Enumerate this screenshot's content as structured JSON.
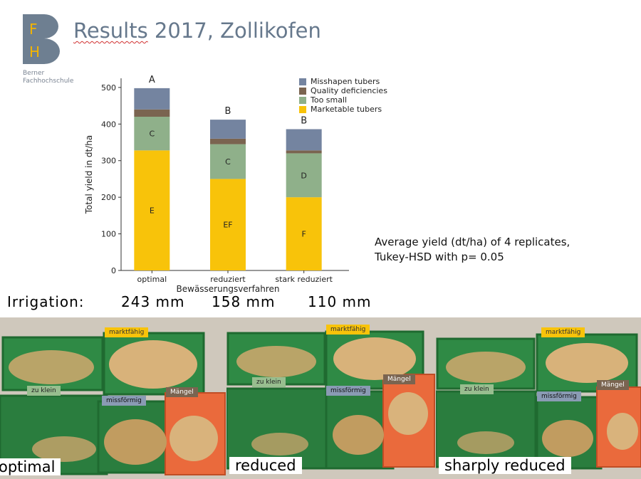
{
  "header": {
    "logo_letters": [
      "F",
      "H"
    ],
    "institution_line1": "Berner",
    "institution_line2": "Fachhochschule",
    "title_word1": "Results",
    "title_rest": " 2017, Zollikofen"
  },
  "colors": {
    "accent": "#6e7f91",
    "misshapen": "#7484a0",
    "quality": "#7a6450",
    "too_small": "#8fb08a",
    "marketable": "#f8c30a"
  },
  "chart_data": {
    "type": "bar",
    "stacked": true,
    "categories": [
      "optimal",
      "reduziert",
      "stark reduziert"
    ],
    "series": [
      {
        "name": "Marketable tubers",
        "values": [
          328,
          250,
          200
        ],
        "letters": [
          "E",
          "EF",
          "F"
        ]
      },
      {
        "name": "Too small",
        "values": [
          92,
          95,
          120
        ],
        "letters": [
          "C",
          "C",
          "D"
        ]
      },
      {
        "name": "Quality deficiencies",
        "values": [
          20,
          15,
          8
        ],
        "letters": [
          "",
          "",
          ""
        ]
      },
      {
        "name": "Misshapen tubers",
        "values": [
          58,
          52,
          58
        ],
        "letters": [
          "",
          "",
          ""
        ]
      }
    ],
    "top_letters": [
      "A",
      "B",
      "B"
    ],
    "xlabel": "Bewässerungsverfahren",
    "ylabel": "Total yield in dt/ha",
    "ylim": [
      0,
      525
    ],
    "yticks": [
      0,
      100,
      200,
      300,
      400,
      500
    ],
    "legend_order": [
      "Misshapen tubers",
      "Quality deficiencies",
      "Too small",
      "Marketable tubers"
    ],
    "legend_position": "top-right"
  },
  "note": {
    "line1": "Average yield (dt/ha) of 4 replicates,",
    "line2": "Tukey-HSD with p= 0.05"
  },
  "irrigation": {
    "label": "Irrigation:",
    "values": [
      "243 mm",
      "158 mm",
      "110 mm"
    ]
  },
  "photos": [
    {
      "caption": "optimal",
      "tags": {
        "marketable": "marktfähig",
        "small": "zu klein",
        "misshapen": "missförmig",
        "defects": "Mängel"
      }
    },
    {
      "caption": "reduced",
      "tags": {
        "marketable": "marktfähig",
        "small": "zu klein",
        "misshapen": "missförmig",
        "defects": "Mängel"
      }
    },
    {
      "caption": "sharply reduced",
      "tags": {
        "marketable": "marktfähig",
        "small": "zu klein",
        "misshapen": "missförmig",
        "defects": "Mängel"
      }
    }
  ]
}
